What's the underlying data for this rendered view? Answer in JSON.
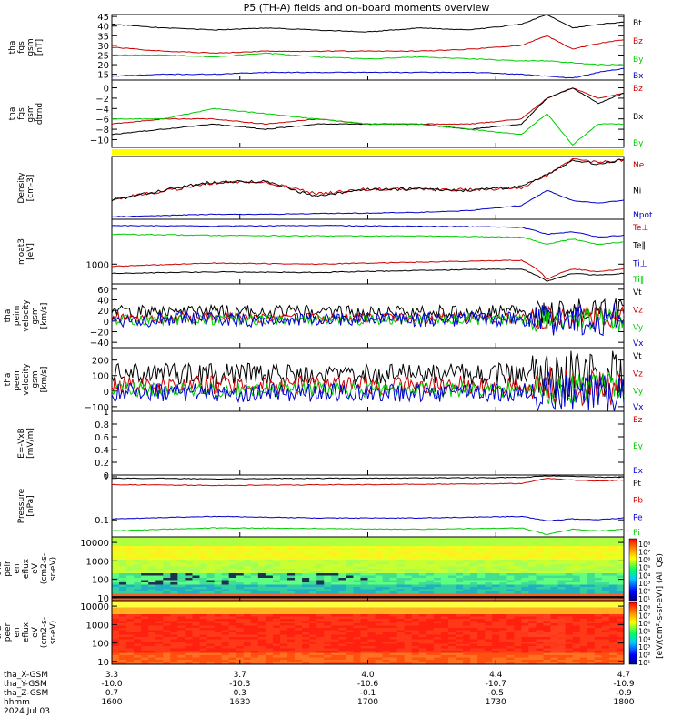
{
  "figure": {
    "title": "P5 (TH-A) fields and on-board moments overview"
  },
  "chart_data": [
    {
      "type": "line",
      "ylabel": [
        "tha",
        "fgs",
        "gsm",
        "[nT]"
      ],
      "ylim": [
        12,
        46
      ],
      "yticks": [
        15,
        20,
        25,
        30,
        35,
        40,
        45
      ],
      "series": [
        {
          "name": "Bt",
          "color": "#000000",
          "x": [
            0,
            0.1,
            0.2,
            0.3,
            0.4,
            0.5,
            0.6,
            0.7,
            0.8,
            0.85,
            0.9,
            0.95,
            1
          ],
          "values": [
            41,
            39,
            38,
            39,
            38,
            37,
            39,
            38,
            41,
            46,
            39,
            41,
            42
          ]
        },
        {
          "name": "Bz",
          "color": "#cc0000",
          "x": [
            0,
            0.1,
            0.2,
            0.3,
            0.4,
            0.5,
            0.6,
            0.7,
            0.8,
            0.85,
            0.9,
            0.95,
            1
          ],
          "values": [
            29,
            27,
            26,
            27,
            27,
            27,
            27,
            28,
            30,
            35,
            28,
            31,
            33
          ]
        },
        {
          "name": "By",
          "color": "#00cc00",
          "x": [
            0,
            0.1,
            0.2,
            0.3,
            0.4,
            0.5,
            0.6,
            0.7,
            0.8,
            0.85,
            0.9,
            0.95,
            1
          ],
          "values": [
            25,
            25,
            24,
            26,
            24,
            23,
            24,
            23,
            22,
            22,
            21,
            20,
            20
          ]
        },
        {
          "name": "Bx",
          "color": "#0000cc",
          "x": [
            0,
            0.1,
            0.2,
            0.3,
            0.4,
            0.5,
            0.6,
            0.7,
            0.8,
            0.85,
            0.9,
            0.95,
            1
          ],
          "values": [
            14,
            15,
            15,
            16,
            16,
            16,
            16,
            16,
            15,
            14,
            13,
            16,
            18
          ]
        }
      ]
    },
    {
      "type": "line",
      "ylabel": [
        "tha",
        "fgs",
        "gsm",
        "dtrnd"
      ],
      "ylim": [
        -11.5,
        1.5
      ],
      "yticks": [
        -10,
        -8,
        -6,
        -4,
        -2,
        0
      ],
      "series": [
        {
          "name": "Bz",
          "color": "#cc0000",
          "x": [
            0,
            0.1,
            0.2,
            0.3,
            0.4,
            0.5,
            0.6,
            0.7,
            0.8,
            0.85,
            0.9,
            0.95,
            1
          ],
          "values": [
            -7,
            -6,
            -6,
            -7,
            -6,
            -7,
            -7,
            -7,
            -6,
            -2,
            0,
            -2,
            -1
          ]
        },
        {
          "name": "Bx",
          "color": "#000000",
          "x": [
            0,
            0.1,
            0.2,
            0.3,
            0.4,
            0.5,
            0.6,
            0.7,
            0.8,
            0.85,
            0.9,
            0.95,
            1
          ],
          "values": [
            -9,
            -8,
            -7,
            -8,
            -7,
            -7,
            -7,
            -8,
            -7,
            -2,
            0,
            -3,
            -1
          ]
        },
        {
          "name": "By",
          "color": "#00cc00",
          "x": [
            0,
            0.1,
            0.2,
            0.3,
            0.4,
            0.5,
            0.6,
            0.7,
            0.8,
            0.85,
            0.9,
            0.95,
            1
          ],
          "values": [
            -6,
            -6,
            -4,
            -5,
            -6,
            -7,
            -7,
            -8,
            -9,
            -5,
            -11,
            -7,
            -7
          ]
        }
      ]
    },
    {
      "type": "line",
      "ylabel": [
        "Density",
        "[cm-3]"
      ],
      "ylim": [
        0,
        10
      ],
      "series": [
        {
          "name": "Ne",
          "color": "#cc0000",
          "x": [
            0,
            0.1,
            0.2,
            0.3,
            0.4,
            0.5,
            0.6,
            0.7,
            0.8,
            0.85,
            0.9,
            0.95,
            1
          ],
          "values": [
            3.2,
            4.5,
            5.8,
            6.0,
            4.0,
            4.8,
            4.8,
            4.7,
            5.0,
            7.0,
            9.6,
            9.0,
            9.5
          ]
        },
        {
          "name": "Ni",
          "color": "#000000",
          "x": [
            0,
            0.1,
            0.2,
            0.3,
            0.4,
            0.5,
            0.6,
            0.7,
            0.8,
            0.85,
            0.9,
            0.95,
            1
          ],
          "values": [
            3.0,
            4.6,
            6.0,
            6.0,
            3.6,
            4.8,
            4.8,
            4.6,
            5.2,
            7.2,
            9.4,
            8.8,
            9.6
          ]
        },
        {
          "name": "Npot",
          "color": "#0000cc",
          "x": [
            0,
            0.1,
            0.2,
            0.3,
            0.4,
            0.5,
            0.6,
            0.7,
            0.8,
            0.85,
            0.9,
            0.95,
            1
          ],
          "values": [
            0.4,
            0.6,
            0.8,
            0.8,
            0.9,
            1.0,
            1.1,
            1.4,
            2.2,
            4.6,
            3.0,
            2.6,
            3.0
          ]
        }
      ]
    },
    {
      "type": "line",
      "ylabel": [
        "moat3",
        "[eV]"
      ],
      "yscale": "log",
      "ylim": [
        400,
        8000
      ],
      "yticks": [
        1000
      ],
      "series": [
        {
          "name": "Te⊥",
          "color": "#cc0000",
          "x": [
            0,
            0.2,
            0.4,
            0.6,
            0.8,
            0.85,
            0.9,
            0.95,
            1
          ],
          "values": [
            900,
            1050,
            1000,
            1100,
            1200,
            500,
            800,
            700,
            800
          ]
        },
        {
          "name": "Te‖",
          "color": "#000000",
          "x": [
            0,
            0.2,
            0.4,
            0.6,
            0.8,
            0.85,
            0.9,
            0.95,
            1
          ],
          "values": [
            650,
            700,
            680,
            750,
            800,
            450,
            650,
            600,
            650
          ]
        },
        {
          "name": "Ti⊥",
          "color": "#0000cc",
          "x": [
            0,
            0.2,
            0.4,
            0.6,
            0.8,
            0.85,
            0.9,
            0.95,
            1
          ],
          "values": [
            6000,
            5800,
            6000,
            5800,
            5500,
            4000,
            4500,
            3500,
            3800
          ]
        },
        {
          "name": "Ti‖",
          "color": "#00cc00",
          "x": [
            0,
            0.2,
            0.4,
            0.6,
            0.8,
            0.85,
            0.9,
            0.95,
            1
          ],
          "values": [
            4000,
            3800,
            3700,
            3700,
            3500,
            2500,
            3200,
            2500,
            2800
          ]
        }
      ]
    },
    {
      "type": "line",
      "ylabel": [
        "tha",
        "peim",
        "velocity",
        "gsm",
        "[km/s]"
      ],
      "ylim": [
        -50,
        70
      ],
      "yticks": [
        -40,
        -20,
        0,
        20,
        40,
        60
      ],
      "series": [
        {
          "name": "Vt",
          "color": "#000000",
          "base": 18,
          "amp": 12
        },
        {
          "name": "Vz",
          "color": "#cc0000",
          "base": 6,
          "amp": 10
        },
        {
          "name": "Vy",
          "color": "#00cc00",
          "base": 2,
          "amp": 10
        },
        {
          "name": "Vx",
          "color": "#0000cc",
          "base": 3,
          "amp": 14
        }
      ]
    },
    {
      "type": "line",
      "ylabel": [
        "tha",
        "peem",
        "velocity",
        "gsm",
        "[km/s]"
      ],
      "ylim": [
        -130,
        280
      ],
      "yticks": [
        -100,
        0,
        100,
        200
      ],
      "series": [
        {
          "name": "Vt",
          "color": "#000000",
          "base": 110,
          "amp": 70
        },
        {
          "name": "Vz",
          "color": "#cc0000",
          "base": 40,
          "amp": 60
        },
        {
          "name": "Vy",
          "color": "#00cc00",
          "base": 10,
          "amp": 50
        },
        {
          "name": "Vx",
          "color": "#0000cc",
          "base": -10,
          "amp": 60
        }
      ]
    },
    {
      "type": "line",
      "ylabel": [
        "E=-VxB",
        "[mV/m]"
      ],
      "ylim": [
        0,
        1.0
      ],
      "yticks": [
        0.0,
        0.2,
        0.4,
        0.6,
        0.8,
        1.0
      ],
      "series": [
        {
          "name": "Ez",
          "color": "#cc0000",
          "x": [],
          "values": []
        },
        {
          "name": "Ey",
          "color": "#00cc00",
          "x": [],
          "values": []
        },
        {
          "name": "Ex",
          "color": "#0000cc",
          "x": [],
          "values": []
        }
      ]
    },
    {
      "type": "line",
      "ylabel": [
        "Pressure",
        "[nPa]"
      ],
      "yscale": "log",
      "ylim": [
        0.04,
        1.1
      ],
      "yticks": [
        0.1,
        1.0
      ],
      "series": [
        {
          "name": "Pt",
          "color": "#000000",
          "x": [
            0,
            0.2,
            0.4,
            0.6,
            0.8,
            0.85,
            0.9,
            0.95,
            1
          ],
          "values": [
            0.93,
            0.9,
            0.92,
            0.94,
            0.96,
            1.05,
            1.02,
            0.98,
            0.98
          ]
        },
        {
          "name": "Pb",
          "color": "#cc0000",
          "x": [
            0,
            0.2,
            0.4,
            0.6,
            0.8,
            0.85,
            0.9,
            0.95,
            1
          ],
          "values": [
            0.66,
            0.63,
            0.65,
            0.67,
            0.7,
            0.92,
            0.84,
            0.8,
            0.84
          ]
        },
        {
          "name": "Pe",
          "color": "#0000cc",
          "x": [
            0,
            0.2,
            0.4,
            0.6,
            0.8,
            0.85,
            0.9,
            0.95,
            1
          ],
          "values": [
            0.105,
            0.12,
            0.11,
            0.11,
            0.12,
            0.095,
            0.105,
            0.1,
            0.11
          ]
        },
        {
          "name": "Pi",
          "color": "#00cc00",
          "x": [
            0,
            0.2,
            0.4,
            0.6,
            0.8,
            0.85,
            0.9,
            0.95,
            1
          ],
          "values": [
            0.055,
            0.065,
            0.063,
            0.06,
            0.065,
            0.045,
            0.06,
            0.055,
            0.06
          ]
        }
      ]
    },
    {
      "type": "heatmap",
      "ylabel": [
        "tha",
        "peir",
        "en",
        "eflux",
        "eV",
        "(cm2-s-",
        "sr-eV)"
      ],
      "yscale": "log",
      "ylim": [
        7,
        20000
      ],
      "yticks": [
        10,
        100,
        1000,
        10000
      ]
    },
    {
      "type": "heatmap",
      "ylabel": [
        "tha",
        "peer",
        "en",
        "eflux",
        "eV",
        "(cm2-s-",
        "sr-eV)"
      ],
      "yscale": "log",
      "ylim": [
        7,
        20000
      ],
      "yticks": [
        10,
        100,
        1000,
        10000
      ]
    }
  ],
  "colorbar": {
    "label": "[eV/(cm²-s-sr-eV)] (All Qs)",
    "labels_top": [
      "10⁸",
      "10⁷",
      "10⁶",
      "10⁵",
      "10⁴",
      "10³",
      "10²",
      "10¹"
    ],
    "labels_bottom": [
      "10⁸",
      "10⁷",
      "10⁶",
      "10⁵",
      "10⁴",
      "10³",
      "10²",
      "10¹"
    ]
  },
  "x_axis": {
    "rows": [
      {
        "label": "tha_X-GSM",
        "values": [
          "3.3",
          "3.7",
          "4.0",
          "4.4",
          "4.7"
        ]
      },
      {
        "label": "tha_Y-GSM",
        "values": [
          "-10.0",
          "-10.3",
          "-10.6",
          "-10.7",
          "-10.9"
        ]
      },
      {
        "label": "tha_Z-GSM",
        "values": [
          "0.7",
          "0.3",
          "-0.1",
          "-0.5",
          "-0.9"
        ]
      },
      {
        "label": "hhmm",
        "values": [
          "1600",
          "1630",
          "1700",
          "1730",
          "1800"
        ]
      }
    ],
    "date": "2024 Jul 03"
  }
}
